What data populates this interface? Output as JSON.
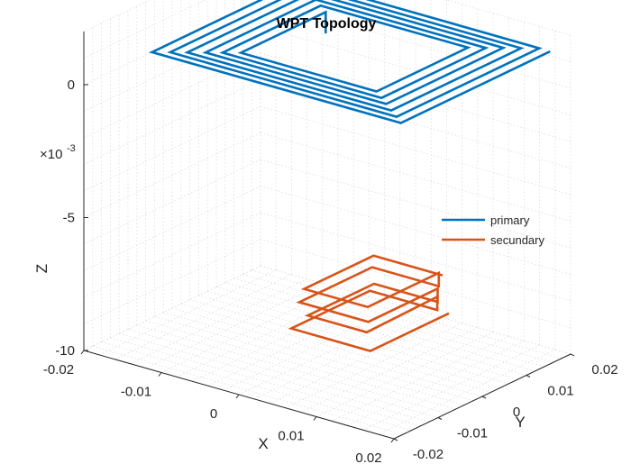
{
  "chart_data": {
    "type": "line3d",
    "title": "WPT Topology",
    "xlabel": "X",
    "ylabel": "Y",
    "zlabel": "Z",
    "xlim": [
      -0.02,
      0.02
    ],
    "ylim": [
      -0.02,
      0.02
    ],
    "zlim": [
      -0.01,
      0.002
    ],
    "z_exponent_label": "×10",
    "z_exponent_power": "-3",
    "x_ticks": [
      "-0.02",
      "-0.01",
      "0",
      "0.01",
      "0.02"
    ],
    "y_ticks": [
      "-0.02",
      "-0.01",
      "0",
      "0.01",
      "0.02"
    ],
    "z_ticks": [
      "-10",
      "-5",
      "0"
    ],
    "grid": true,
    "legend_position": "right",
    "series": [
      {
        "name": "primary",
        "color": "#0072BD",
        "points": [
          [
            0.0193,
            0.0166,
            0.0016
          ],
          [
            0.0193,
            -0.0172,
            0.0016
          ],
          [
            -0.0128,
            -0.0172,
            0.0016
          ],
          [
            -0.0128,
            0.0166,
            0.0016
          ],
          [
            0.0179,
            0.0166,
            0.0016
          ],
          [
            0.0179,
            -0.0157,
            0.0016
          ],
          [
            -0.0113,
            -0.0157,
            0.0016
          ],
          [
            -0.0113,
            0.0151,
            0.0016
          ],
          [
            0.0164,
            0.0151,
            0.0016
          ],
          [
            0.0164,
            -0.0143,
            0.0016
          ],
          [
            -0.0099,
            -0.0143,
            0.0016
          ],
          [
            -0.0099,
            0.0137,
            0.0016
          ],
          [
            0.0149,
            0.0137,
            0.0016
          ],
          [
            0.0149,
            -0.0128,
            0.0016
          ],
          [
            -0.0084,
            -0.0128,
            0.0016
          ],
          [
            -0.0084,
            0.0122,
            0.0016
          ],
          [
            0.0135,
            0.0122,
            0.0016
          ],
          [
            0.0135,
            -0.0114,
            0.0016
          ],
          [
            -0.007,
            -0.0114,
            0.0016
          ],
          [
            -0.007,
            0.0108,
            0.0016
          ],
          [
            0.012,
            0.0108,
            0.0016
          ],
          [
            0.012,
            -0.0099,
            0.0016
          ],
          [
            -0.0055,
            -0.0099,
            0.0016
          ],
          [
            -0.0055,
            0.0093,
            0.0016
          ],
          [
            -0.0055,
            0.0093,
            0.0008
          ]
        ]
      },
      {
        "name": "secundary",
        "color": "#D95319",
        "points": [
          [
            0.01,
            0.01,
            -0.0085
          ],
          [
            0.01,
            -0.0078,
            -0.0085
          ],
          [
            -0.0002,
            -0.0078,
            -0.0085
          ],
          [
            -0.0002,
            0.01,
            -0.0085
          ],
          [
            0.0085,
            0.01,
            -0.0085
          ],
          [
            0.0085,
            0.01,
            -0.008
          ],
          [
            0.0088,
            -0.0065,
            -0.008
          ],
          [
            0.0012,
            -0.0065,
            -0.008
          ],
          [
            0.0012,
            0.0085,
            -0.008
          ],
          [
            0.0094,
            0.0085,
            -0.008
          ],
          [
            0.0094,
            0.0085,
            -0.0075
          ],
          [
            0.0094,
            -0.0072,
            -0.0075
          ],
          [
            0.0005,
            -0.0072,
            -0.0075
          ],
          [
            0.0005,
            0.0093,
            -0.0075
          ],
          [
            0.0091,
            0.0093,
            -0.0075
          ],
          [
            0.0091,
            0.0093,
            -0.007
          ],
          [
            0.0091,
            -0.0068,
            -0.007
          ],
          [
            0.0009,
            -0.0068,
            -0.007
          ],
          [
            0.0009,
            0.0089,
            -0.007
          ],
          [
            0.0098,
            0.0089,
            -0.007
          ]
        ]
      }
    ]
  }
}
